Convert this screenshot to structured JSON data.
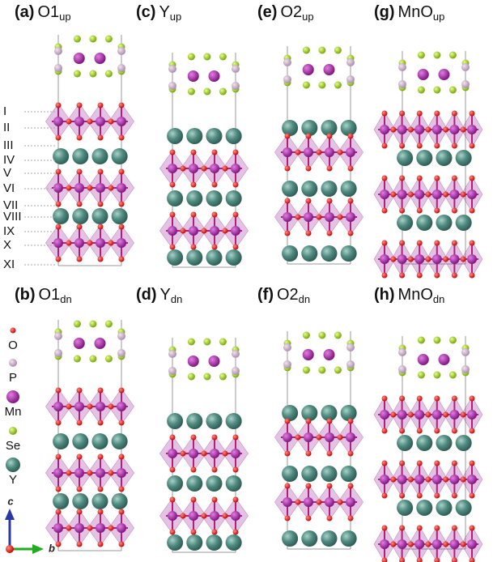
{
  "panels": [
    {
      "label": "(a)",
      "name": "O1",
      "sub": "up"
    },
    {
      "label": "(c)",
      "name": "Y",
      "sub": "up"
    },
    {
      "label": "(e)",
      "name": "O2",
      "sub": "up"
    },
    {
      "label": "(g)",
      "name": "MnO",
      "sub": "up"
    },
    {
      "label": "(b)",
      "name": "O1",
      "sub": "dn"
    },
    {
      "label": "(d)",
      "name": "Y",
      "sub": "dn"
    },
    {
      "label": "(f)",
      "name": "O2",
      "sub": "dn"
    },
    {
      "label": "(h)",
      "name": "MnO",
      "sub": "dn"
    }
  ],
  "layers": [
    "I",
    "II",
    "III",
    "IV",
    "V",
    "VI",
    "VII",
    "VIII",
    "IX",
    "X",
    "XI"
  ],
  "legend": [
    "O",
    "P",
    "Mn",
    "Se",
    "Y"
  ],
  "axes": [
    "c",
    "b"
  ]
}
